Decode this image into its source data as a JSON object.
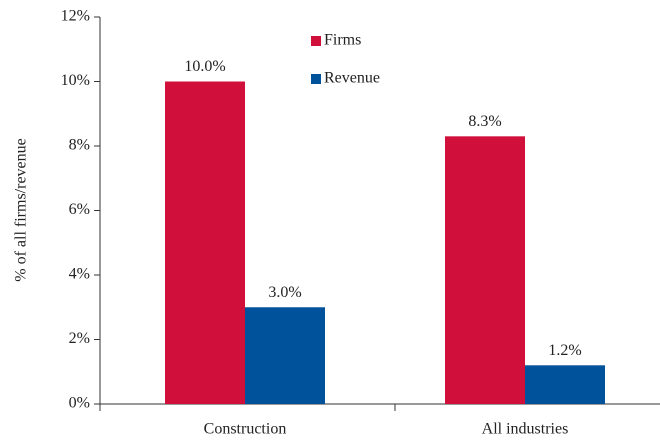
{
  "chart_data": {
    "type": "bar",
    "y_label": "% of all firms/revenue",
    "categories": [
      "Construction",
      "All industries"
    ],
    "series": [
      {
        "name": "Firms",
        "color": "#d0103a",
        "values": [
          10.0,
          8.3
        ],
        "value_labels": [
          "10.0%",
          "8.3%"
        ]
      },
      {
        "name": "Revenue",
        "color": "#00539b",
        "values": [
          3.0,
          1.2
        ],
        "value_labels": [
          "3.0%",
          "1.2%"
        ]
      }
    ],
    "ylim": [
      0,
      12
    ],
    "yticks": [
      {
        "value": 0,
        "label": "0%"
      },
      {
        "value": 2,
        "label": "2%"
      },
      {
        "value": 4,
        "label": "4%"
      },
      {
        "value": 6,
        "label": "6%"
      },
      {
        "value": 8,
        "label": "8%"
      },
      {
        "value": 10,
        "label": "10%"
      },
      {
        "value": 12,
        "label": "12%"
      }
    ],
    "legend": "top"
  }
}
